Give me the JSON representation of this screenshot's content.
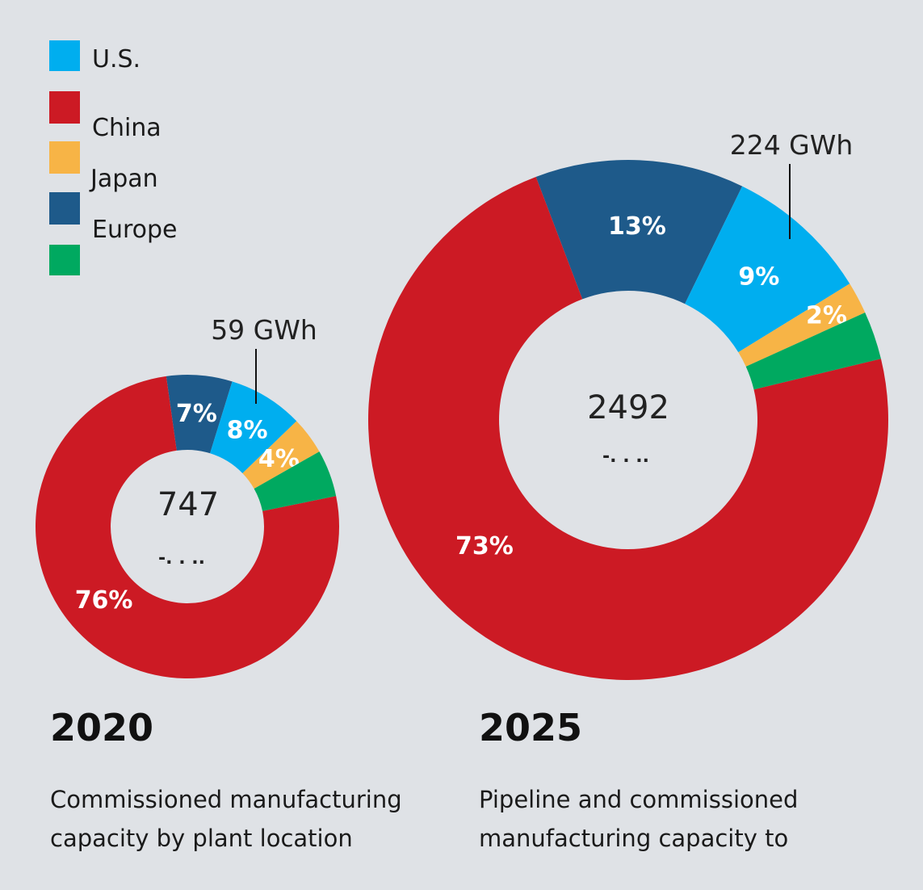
{
  "colors": {
    "background": "#dfe2e6",
    "US": "#00aeef",
    "China": "#cc1a24",
    "Japan": "#f7b446",
    "Europe": "#1e5a8a",
    "Other": "#00a960"
  },
  "legend": [
    {
      "label": "U.S.",
      "color": "#00aeef"
    },
    {
      "label": "China",
      "color": "#cc1a24"
    },
    {
      "label": "Japan",
      "color": "#f7b446"
    },
    {
      "label": "Europe",
      "color": "#1e5a8a"
    },
    {
      "label": "",
      "color": "#00a960"
    }
  ],
  "chart_data": [
    {
      "type": "pie",
      "variant": "donut",
      "title": "2020",
      "caption_lines": [
        "Commissioned manufacturing",
        "capacity by plant location"
      ],
      "center_value": "747",
      "center_sub": "-. . ..",
      "annotation": "59 GWh",
      "slices": [
        {
          "key": "Europe",
          "value": 7,
          "label": "7%",
          "color": "#1e5a8a"
        },
        {
          "key": "US",
          "value": 8,
          "label": "8%",
          "color": "#00aeef"
        },
        {
          "key": "Japan",
          "value": 4,
          "label": "4%",
          "color": "#f7b446"
        },
        {
          "key": "Other",
          "value": 5,
          "label": "",
          "color": "#00a960"
        },
        {
          "key": "China",
          "value": 76,
          "label": "76%",
          "color": "#cc1a24"
        }
      ]
    },
    {
      "type": "pie",
      "variant": "donut",
      "title": "2025",
      "caption_lines": [
        "Pipeline and commissioned",
        "manufacturing capacity to"
      ],
      "center_value": "2492",
      "center_sub": "-. . ..",
      "annotation": "224 GWh",
      "slices": [
        {
          "key": "Europe",
          "value": 13,
          "label": "13%",
          "color": "#1e5a8a"
        },
        {
          "key": "US",
          "value": 9,
          "label": "9%",
          "color": "#00aeef"
        },
        {
          "key": "Japan",
          "value": 2,
          "label": "2%",
          "color": "#f7b446"
        },
        {
          "key": "Other",
          "value": 3,
          "label": "",
          "color": "#00a960"
        },
        {
          "key": "China",
          "value": 73,
          "label": "73%",
          "color": "#cc1a24"
        }
      ]
    }
  ]
}
